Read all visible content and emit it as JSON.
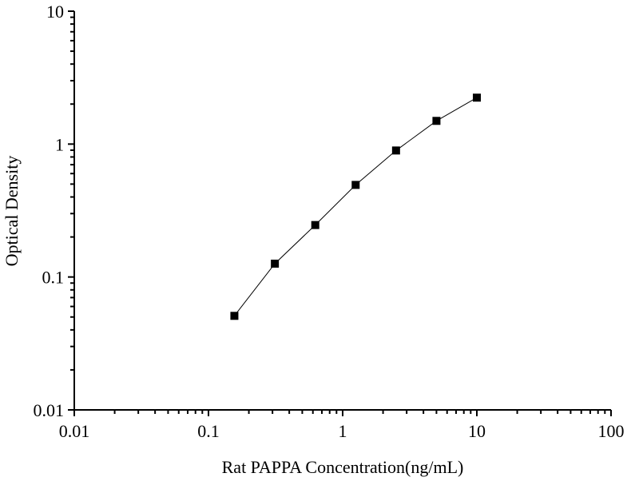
{
  "chart_data": {
    "type": "line",
    "title": "",
    "xlabel": "Rat PAPPA Concentration(ng/mL)",
    "ylabel": "Optical Density",
    "x_scale": "log",
    "y_scale": "log",
    "xlim": [
      0.01,
      100
    ],
    "ylim": [
      0.01,
      10
    ],
    "x_ticks": [
      "0.01",
      "0.1",
      "1",
      "10",
      "100"
    ],
    "y_ticks": [
      "0.01",
      "0.1",
      "1",
      "10"
    ],
    "grid": false,
    "marker": "square",
    "color": "#000000",
    "series": [
      {
        "x": [
          0.156,
          0.3125,
          0.625,
          1.25,
          2.5,
          5,
          10
        ],
        "y": [
          0.051,
          0.126,
          0.246,
          0.493,
          0.895,
          1.495,
          2.236
        ]
      }
    ]
  }
}
